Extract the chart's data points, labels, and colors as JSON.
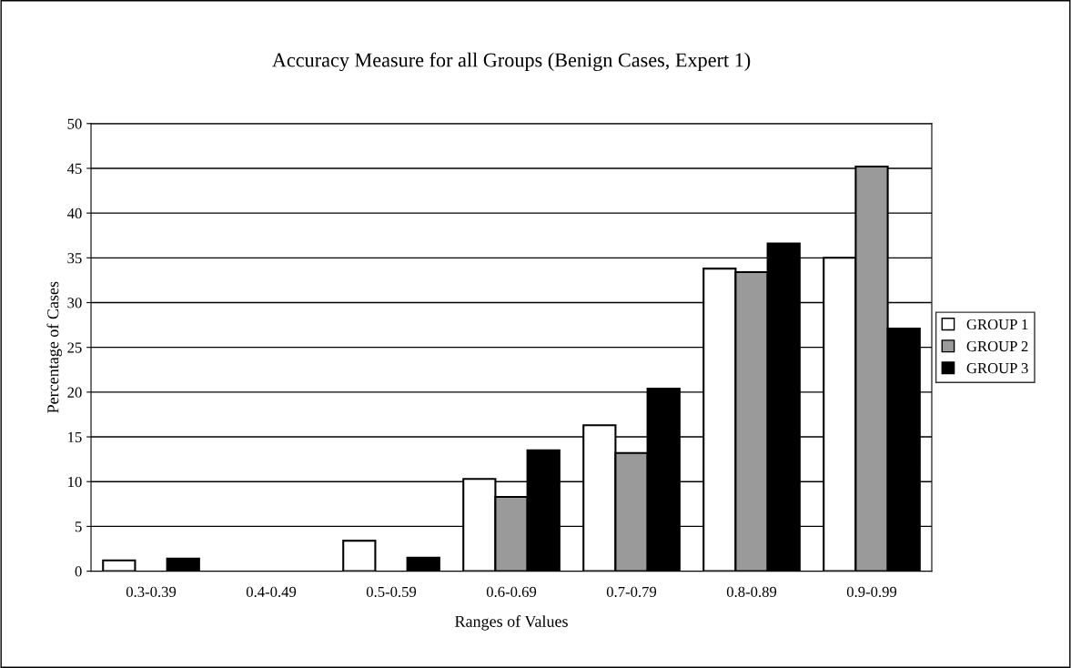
{
  "chart_data": {
    "type": "bar",
    "title": "Accuracy Measure for all Groups (Benign Cases, Expert 1)",
    "xlabel": "Ranges of Values",
    "ylabel": "Percentage of Cases",
    "categories": [
      "0.3-0.39",
      "0.4-0.49",
      "0.5-0.59",
      "0.6-0.69",
      "0.7-0.79",
      "0.8-0.89",
      "0.9-0.99"
    ],
    "series": [
      {
        "name": "GROUP 1",
        "color": "#ffffff",
        "values": [
          1.2,
          0,
          3.4,
          10.3,
          16.3,
          33.8,
          35.0
        ]
      },
      {
        "name": "GROUP 2",
        "color": "#9a9a9a",
        "values": [
          0,
          0,
          0,
          8.3,
          13.2,
          33.4,
          45.2
        ]
      },
      {
        "name": "GROUP 3",
        "color": "#000000",
        "values": [
          1.4,
          0,
          1.5,
          13.5,
          20.4,
          36.6,
          27.1
        ]
      }
    ],
    "ylim": [
      0,
      50
    ],
    "yticks": [
      0,
      5,
      10,
      15,
      20,
      25,
      30,
      35,
      40,
      45,
      50
    ],
    "grid": "y",
    "legend": "right"
  }
}
